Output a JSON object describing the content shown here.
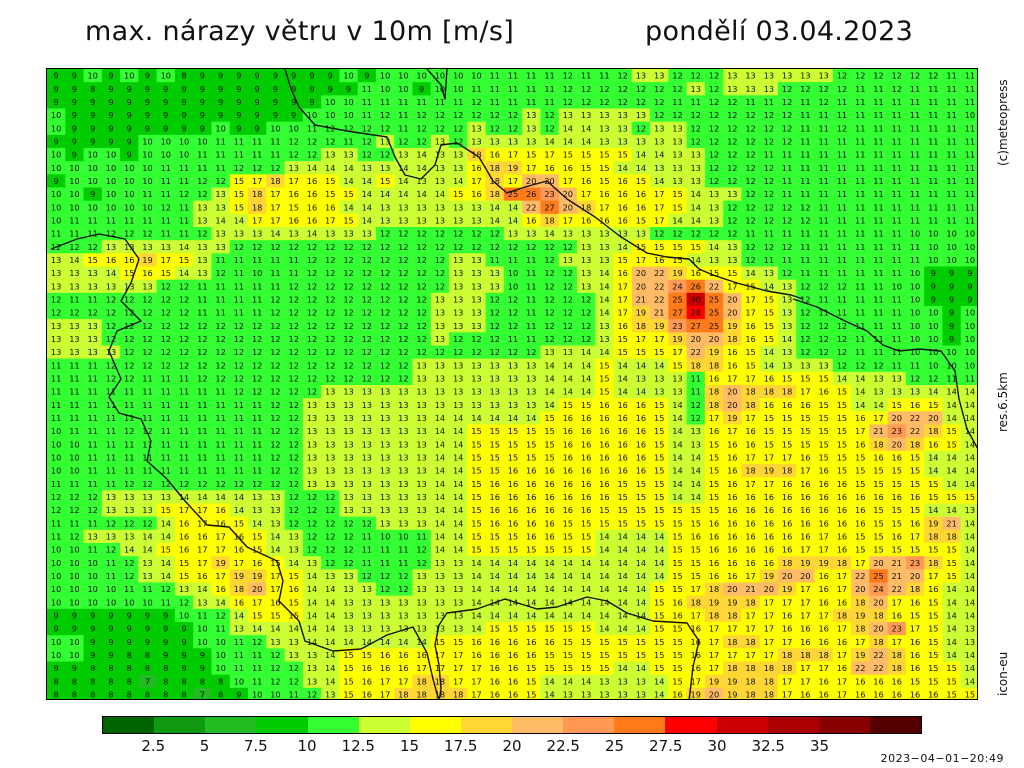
{
  "header": {
    "title": "max. nárazy větru v 10m [m/s]",
    "date": "pondělí 03.04.2023"
  },
  "side_labels": {
    "copyright": "(c)meteopress",
    "resolution": "res.6.5km",
    "model": "icon-eu"
  },
  "legend": {
    "colors": [
      "#006400",
      "#119911",
      "#22bb22",
      "#00cc00",
      "#33ff33",
      "#ccff33",
      "#ffff00",
      "#ffd633",
      "#ffbb66",
      "#ff9955",
      "#ff7a1a",
      "#ff0000",
      "#cc0000",
      "#aa0000",
      "#880000",
      "#550000"
    ],
    "ticks": [
      "2.5",
      "5",
      "7.5",
      "10",
      "12.5",
      "15",
      "17.5",
      "20",
      "22.5",
      "25",
      "27.5",
      "30",
      "32.5",
      "35"
    ]
  },
  "map": {
    "base_color": "#d8e600",
    "rows": [
      "9 9 10 9 10 9 10 8 9 9 9 9 9 9 9 9 10 9 10 10 10 10 10 10 11 11 11 11 12 11 11 12 13 13 12 12 12 13 13 13 13 13 13 12 12 12 12 12 12 11 11",
      "9 9 8 9 9 9 9 9 9 9 9 9 9 9 9 9 9 11 10 10 9 10 10 11 11 11 11 11 12 12 12 12 12 12 12 13 12 13 13 13 12 12 12 12 11 11 12 11 11 11 11",
      "9 9 9 9 9 9 9 9 9 9 9 9 9 9 9 10 10 11 11 11 11 11 11 12 11 11 11 11 12 12 12 12 12 12 11 11 12 12 11 11 12 11 12 11 11 11 11 11 11 11 11",
      "10 9 9 9 9 9 9 9 9 9 9 9 9 9 10 10 10 11 12 11 12 12 12 12 12 12 13 12 13 13 13 13 13 12 12 12 12 12 12 12 12 11 11 11 11 11 11 11 11 11 10",
      "10 9 9 9 9 9 9 9 9 10 9 9 10 10 11 12 12 12 12 11 12 12 12 13 12 12 13 12 14 14 13 13 12 13 13 12 12 12 12 12 12 11 11 12 11 11 11 11 11 11 11",
      "9 9 9 9 9 10 10 10 10 11 11 11 11 12 12 12 11 12 13 12 12 13 12 13 13 13 13 14 14 14 13 13 13 13 13 12 12 12 12 12 12 11 11 11 11 11 11 11 11 11 11",
      "10 9 10 10 9 10 10 10 11 11 11 11 11 12 12 13 13 12 12 13 14 13 13 18 16 17 15 17 15 15 15 15 14 14 13 13 12 12 12 11 11 11 11 11 11 11 11 11 11 11 11",
      "10 10 10 10 10 10 11 11 11 11 12 12 12 13 14 14 14 13 13 14 14 13 13 16 18 19 17 16 16 15 15 14 14 13 13 13 12 12 12 12 11 11 11 11 11 11 11 11 11 11 11",
      "9 10 10 10 10 10 11 11 12 12 15 17 18 17 16 15 14 14 15 14 13 13 14 17 18 17 20 20 17 16 15 16 15 14 13 13 12 12 12 12 11 11 11 11 11 11 11 11 11 11 11",
      "10 10 9 10 10 11 11 12 12 13 15 18 17 16 16 15 15 14 14 14 14 14 15 16 18 25 26 23 20 17 16 16 16 17 15 14 13 13 12 12 11 11 11 11 11 11 11 11 11 11 11",
      "10 10 10 10 10 10 12 11 13 13 15 18 17 15 16 16 14 14 13 13 13 13 13 13 14 14 22 27 20 18 17 16 16 17 15 14 13 12 12 12 12 12 11 11 11 11 11 11 11 11 11",
      "10 11 11 11 11 11 11 11 13 14 14 17 17 16 16 17 15 14 13 13 13 13 13 13 14 14 16 18 17 16 16 16 15 17 14 14 13 12 12 12 12 12 11 11 11 11 11 11 11 11 11",
      "11 11 11 12 12 12 11 11 12 13 13 13 14 13 14 13 13 13 12 12 12 12 12 12 12 13 13 14 13 13 13 13 13 12 12 12 12 12 11 11 11 11 11 11 11 11 11 10 10 10 10",
      "12 12 12 13 13 13 13 14 13 13 12 12 12 12 12 12 12 12 12 12 12 12 12 12 12 12 12 12 12 13 13 14 15 15 15 15 14 13 12 12 12 11 11 11 11 11 11 11 10 10 10",
      "13 14 15 16 16 19 17 15 13 11 11 11 11 11 12 12 12 12 12 12 12 12 13 13 11 11 11 12 13 13 13 15 17 16 15 14 13 13 12 11 11 11 11 11 11 11 11 11 10 10 10",
      "13 13 13 14 15 16 15 14 13 12 11 10 11 11 12 12 12 12 12 12 12 12 13 13 13 10 11 12 12 13 14 16 20 22 19 16 15 15 14 13 12 11 11 11 11 11 11 10 9 9 9",
      "13 13 13 13 13 13 12 12 11 11 11 11 11 12 12 12 12 12 12 12 12 12 13 13 13 10 11 12 12 13 14 17 20 22 24 26 22 17 15 14 13 12 12 12 11 11 10 10 9 9 9",
      "12 11 11 12 12 12 12 12 11 11 11 11 12 12 12 12 12 12 12 12 12 13 13 13 12 12 11 12 12 12 14 17 21 22 25 30 25 20 17 15 13 12 11 11 11 11 11 10 9 9 9",
      "12 12 12 12 12 12 12 12 11 11 11 11 12 12 12 12 12 12 12 12 12 13 13 13 12 12 11 12 12 12 14 17 19 21 27 28 25 20 17 15 13 12 11 11 11 11 11 10 10 9 10",
      "13 13 13 12 12 12 12 12 12 12 12 12 12 12 12 12 12 12 12 12 12 13 13 13 12 12 11 12 12 12 13 16 18 19 23 27 25 19 16 15 13 12 12 12 11 11 11 10 10 9 10",
      "13 13 13 12 12 12 12 12 12 12 12 12 12 12 12 12 12 12 12 12 12 13 12 12 12 11 11 12 12 12 13 15 17 17 19 20 20 18 16 15 14 12 12 12 11 11 11 10 10 9 10",
      "13 13 13 13 12 12 12 12 12 12 12 12 12 12 12 12 12 12 12 12 12 12 12 12 12 12 12 13 13 14 14 15 15 15 17 22 19 16 15 14 13 12 12 12 11 11 11 10 10 10 10",
      "11 11 11 12 12 12 12 12 12 12 12 12 12 12 12 12 12 12 12 12 13 13 13 13 13 13 13 14 14 14 15 14 14 14 15 18 18 16 15 14 13 13 13 12 12 12 11 11 10 10 10",
      "11 11 11 12 12 11 11 11 12 12 12 12 12 12 12 12 12 12 12 12 13 13 13 13 13 13 13 14 14 14 15 14 13 13 13 11 16 17 17 16 15 15 15 14 14 13 13 12 12 11 11",
      "11 11 11 11 11 11 11 11 11 11 12 12 12 12 12 13 13 13 13 13 13 13 13 13 13 13 13 14 14 14 15 14 14 13 13 11 18 20 18 18 18 17 16 15 14 13 13 13 14 14 14",
      "11 11 11 11 11 11 11 11 11 11 11 11 12 12 13 13 13 13 13 13 13 13 13 13 13 13 13 14 15 15 16 16 16 15 14 12 18 20 18 16 16 16 15 15 14 14 15 16 15 14 14",
      "11 11 11 11 11 11 11 11 11 11 11 11 12 12 13 13 13 13 13 13 13 14 14 14 14 14 14 15 16 16 16 16 16 15 14 12 17 19 17 15 15 15 15 15 16 17 20 22 20 14 14",
      "10 11 11 11 12 12 11 11 11 11 11 11 12 12 13 13 13 13 13 13 13 14 14 15 15 15 15 15 16 16 16 16 16 15 14 13 16 17 16 15 15 15 15 15 17 21 23 22 18 15 14",
      "10 10 11 11 11 11 11 11 11 11 11 11 12 12 13 13 13 13 13 13 13 14 14 15 15 15 15 15 16 16 16 16 16 15 14 13 15 16 16 15 15 15 15 15 16 18 20 18 16 15 14",
      "10 10 11 11 11 11 11 11 11 11 11 11 12 12 13 13 13 13 13 13 13 14 14 15 15 15 15 15 16 16 16 16 16 15 14 14 15 16 17 17 17 16 15 15 15 16 16 15 14 14 14",
      "10 10 11 11 11 11 11 11 11 11 11 11 12 12 13 13 13 13 13 13 13 14 14 15 15 16 16 16 16 16 16 16 16 15 14 14 15 16 18 19 18 17 16 15 15 15 15 15 14 14 14",
      "11 11 11 11 12 12 12 12 12 12 12 12 12 12 13 13 13 13 13 13 13 14 14 15 16 16 16 16 16 16 16 15 15 15 14 14 15 16 17 17 16 16 16 16 15 15 15 15 15 14 14",
      "12 12 12 13 13 13 13 14 14 14 14 13 13 12 12 12 13 13 13 13 13 14 14 15 16 16 16 16 16 16 16 15 15 15 14 14 15 16 16 16 16 16 16 16 16 16 16 16 15 15 15",
      "12 12 12 13 13 13 15 17 17 16 14 13 13 12 12 12 13 13 13 13 13 14 14 15 16 16 16 16 16 16 15 15 15 15 15 15 15 16 16 16 16 16 16 16 16 15 15 15 14 14 13",
      "11 11 11 12 12 12 14 16 17 16 15 14 13 12 12 12 12 12 13 13 13 14 14 15 16 16 16 16 15 15 15 15 15 15 15 15 16 16 16 16 16 16 16 16 16 15 15 16 19 21 14",
      "11 12 13 13 13 14 14 16 16 17 16 15 14 13 12 12 12 11 10 10 11 14 14 15 15 15 16 16 15 15 14 14 14 14 15 16 16 16 16 16 16 16 17 16 15 15 16 17 18 18 14",
      "10 10 11 12 14 14 15 16 17 17 16 15 14 13 12 12 12 11 11 11 12 14 14 15 15 15 15 15 15 15 14 14 14 14 15 15 16 16 16 16 16 17 17 16 15 15 15 15 15 15 14",
      "10 10 10 11 12 13 14 15 17 19 17 16 15 14 13 12 12 11 11 11 12 13 13 14 14 14 14 14 14 14 14 14 14 14 15 15 16 16 16 16 18 19 19 18 17 20 21 23 18 15 14",
      "10 10 10 11 12 13 14 15 16 17 19 19 17 15 14 13 13 12 12 12 13 13 13 14 14 14 14 14 14 14 14 14 14 14 15 15 16 16 17 19 20 20 16 17 22 25 21 20 17 15 14",
      "10 10 10 10 11 11 12 13 14 16 18 20 17 16 14 14 13 13 12 12 13 13 13 14 14 14 14 14 14 14 14 14 14 15 15 17 18 20 21 20 19 17 16 17 20 24 22 18 16 14 14",
      "10 10 10 10 10 10 11 12 13 14 16 17 16 15 14 14 13 13 13 13 13 13 13 14 14 14 14 14 14 14 14 14 14 15 16 18 19 19 18 17 17 17 16 16 18 20 17 16 15 14 14",
      "9 9 9 9 9 9 9 10 11 12 14 15 15 15 14 14 13 13 13 13 13 13 13 14 14 14 14 14 14 14 14 14 14 15 16 17 18 18 17 17 16 17 17 18 19 18 16 15 15 14 14",
      "9 9 9 9 9 9 9 9 10 11 13 14 14 14 14 14 13 13 13 13 13 13 13 14 15 15 15 15 15 15 14 14 14 15 15 16 17 17 17 17 16 16 16 17 18 20 23 17 15 14 13",
      "10 10 9 9 9 9 9 9 10 10 11 12 13 13 14 14 14 14 14 14 14 15 15 16 16 16 16 16 15 15 15 15 15 15 15 16 17 18 18 17 17 16 16 16 17 18 17 16 15 14 13",
      "10 10 9 9 8 8 9 9 9 10 11 11 12 13 13 14 15 15 16 16 16 17 17 16 16 16 16 15 15 15 15 15 15 15 15 16 17 17 17 17 18 18 18 17 19 22 18 16 15 14 14",
      "9 9 8 8 8 8 8 9 9 10 11 11 12 12 13 14 15 16 16 16 17 17 17 17 16 16 15 15 15 15 15 14 14 15 15 16 17 18 18 18 18 17 17 16 22 22 18 16 15 15 14",
      "8 8 8 8 8 7 8 8 8 8 10 11 12 12 13 14 15 16 17 17 18 18 17 17 16 16 15 14 14 14 13 13 13 14 15 17 19 19 18 18 17 17 16 17 16 16 16 15 15 15 14",
      "8 8 8 8 8 8 8 8 7 8 9 10 10 11 12 13 15 16 17 18 18 18 18 17 16 16 15 14 13 13 13 13 13 14 16 19 20 19 18 18 17 16 16 17 16 16 16 16 16 15 15"
    ],
    "contour_width": 1.4,
    "borders": [
      "M4,180 L30,170 L52,165 L78,170 L92,190 L84,214 L74,232 L94,252 L70,262 L62,282 L74,310 L62,328 L72,344 L94,350 L104,372 L100,392 L120,410 L138,432 L160,456 L182,458 L200,478 L230,492 L236,512 L232,532 L252,552 L258,572 L286,582 L314,580 L340,566 L366,558 L380,584 L386,610 L392,632",
      "M392,632 L394,620 L392,596 L388,576 L392,556 L400,544 L430,540 L458,530 L490,540 L510,538 L540,528 L560,532 L580,544 L606,552 L640,554 L652,572 L646,598 L642,632",
      "M238,0 L244,20 L252,38 L268,56 L300,62 L340,68 L348,88 L358,106 L374,110 L388,96 L394,76 L410,74 L432,88 L446,112 L460,124 L478,118 L500,112 L520,130 L548,148 L574,168 L600,184 L620,188 L642,190 L652,200 L666,206 L690,214 L720,222 L744,226 L756,230",
      "M746,230 L770,238 L798,252 L820,262 L836,276 L852,282 L872,280 L894,282 L908,302 L912,330 L920,360 L932,382",
      "M380,0 L394,16 L398,30 L400,0"
    ]
  }
}
